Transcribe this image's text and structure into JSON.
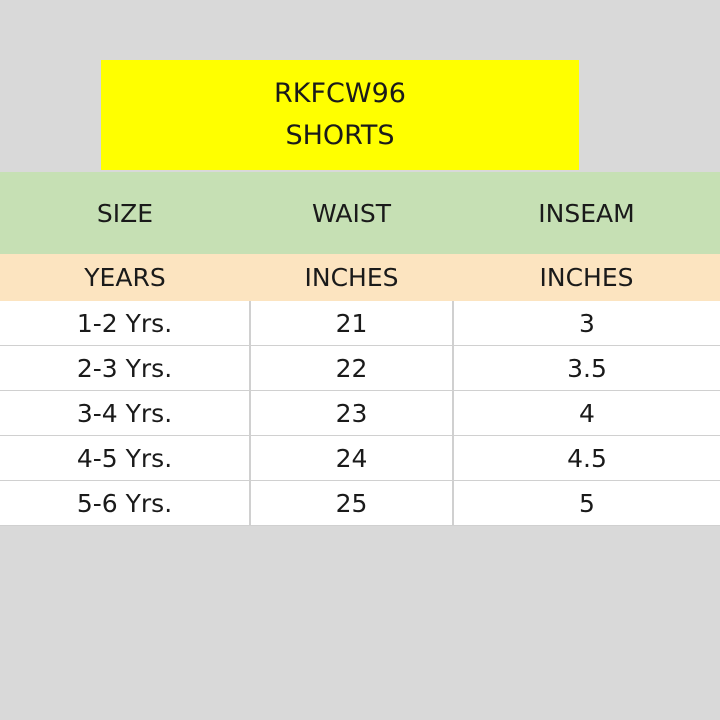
{
  "title": {
    "code": "RKFCW96",
    "product": "SHORTS"
  },
  "table": {
    "headers": [
      "SIZE",
      "WAIST",
      "INSEAM"
    ],
    "units": [
      "YEARS",
      "INCHES",
      "INCHES"
    ],
    "rows": [
      [
        "1-2 Yrs.",
        "21",
        "3"
      ],
      [
        "2-3 Yrs.",
        "22",
        "3.5"
      ],
      [
        "3-4 Yrs.",
        "23",
        "4"
      ],
      [
        "4-5 Yrs.",
        "24",
        "4.5"
      ],
      [
        "5-6 Yrs.",
        "25",
        "5"
      ]
    ]
  },
  "colors": {
    "title_bg": "#ffff00",
    "header_bg": "#c6e0b4",
    "unit_bg": "#fce4c0",
    "page_bg": "#d9d9d9"
  }
}
